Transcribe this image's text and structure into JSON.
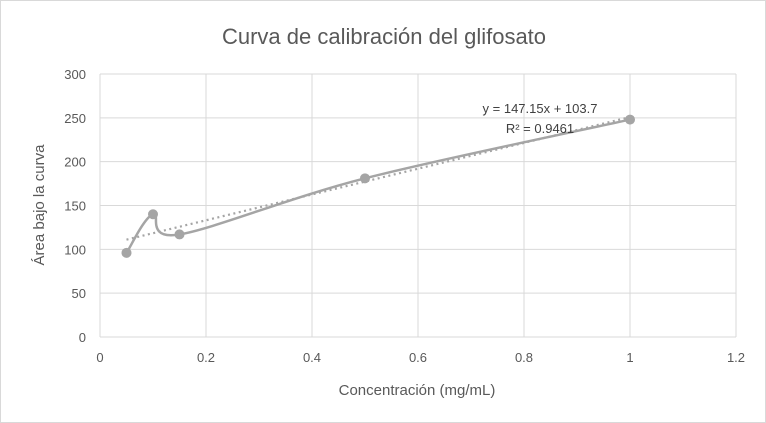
{
  "chart_data": {
    "type": "scatter",
    "title": "Curva de calibración del glifosato",
    "xlabel": "Concentración (mg/mL)",
    "ylabel": "Área bajo la curva",
    "xlim": [
      0,
      1.2
    ],
    "ylim": [
      0,
      300
    ],
    "x_ticks": [
      0,
      0.2,
      0.4,
      0.6,
      0.8,
      1,
      1.2
    ],
    "y_ticks": [
      0,
      50,
      100,
      150,
      200,
      250,
      300
    ],
    "x_tick_labels": [
      "0",
      "0.2",
      "0.4",
      "0.6",
      "0.8",
      "1",
      "1.2"
    ],
    "y_tick_labels": [
      "0",
      "50",
      "100",
      "150",
      "200",
      "250",
      "300"
    ],
    "grid": true,
    "series": [
      {
        "x": [
          0.05,
          0.1,
          0.15,
          0.5,
          1.0
        ],
        "y": [
          96,
          140,
          117,
          181,
          248
        ],
        "smoothed_line": true
      }
    ],
    "trendline": {
      "type": "linear",
      "slope": 147.15,
      "intercept": 103.7,
      "x_range": [
        0.05,
        1.0
      ],
      "equation": "y = 147.15x + 103.7",
      "r_squared": "R² = 0.9461"
    },
    "colors": {
      "series": "#a5a5a5",
      "trendline": "#a5a5a5",
      "grid": "#d9d9d9",
      "text": "#595959"
    }
  }
}
